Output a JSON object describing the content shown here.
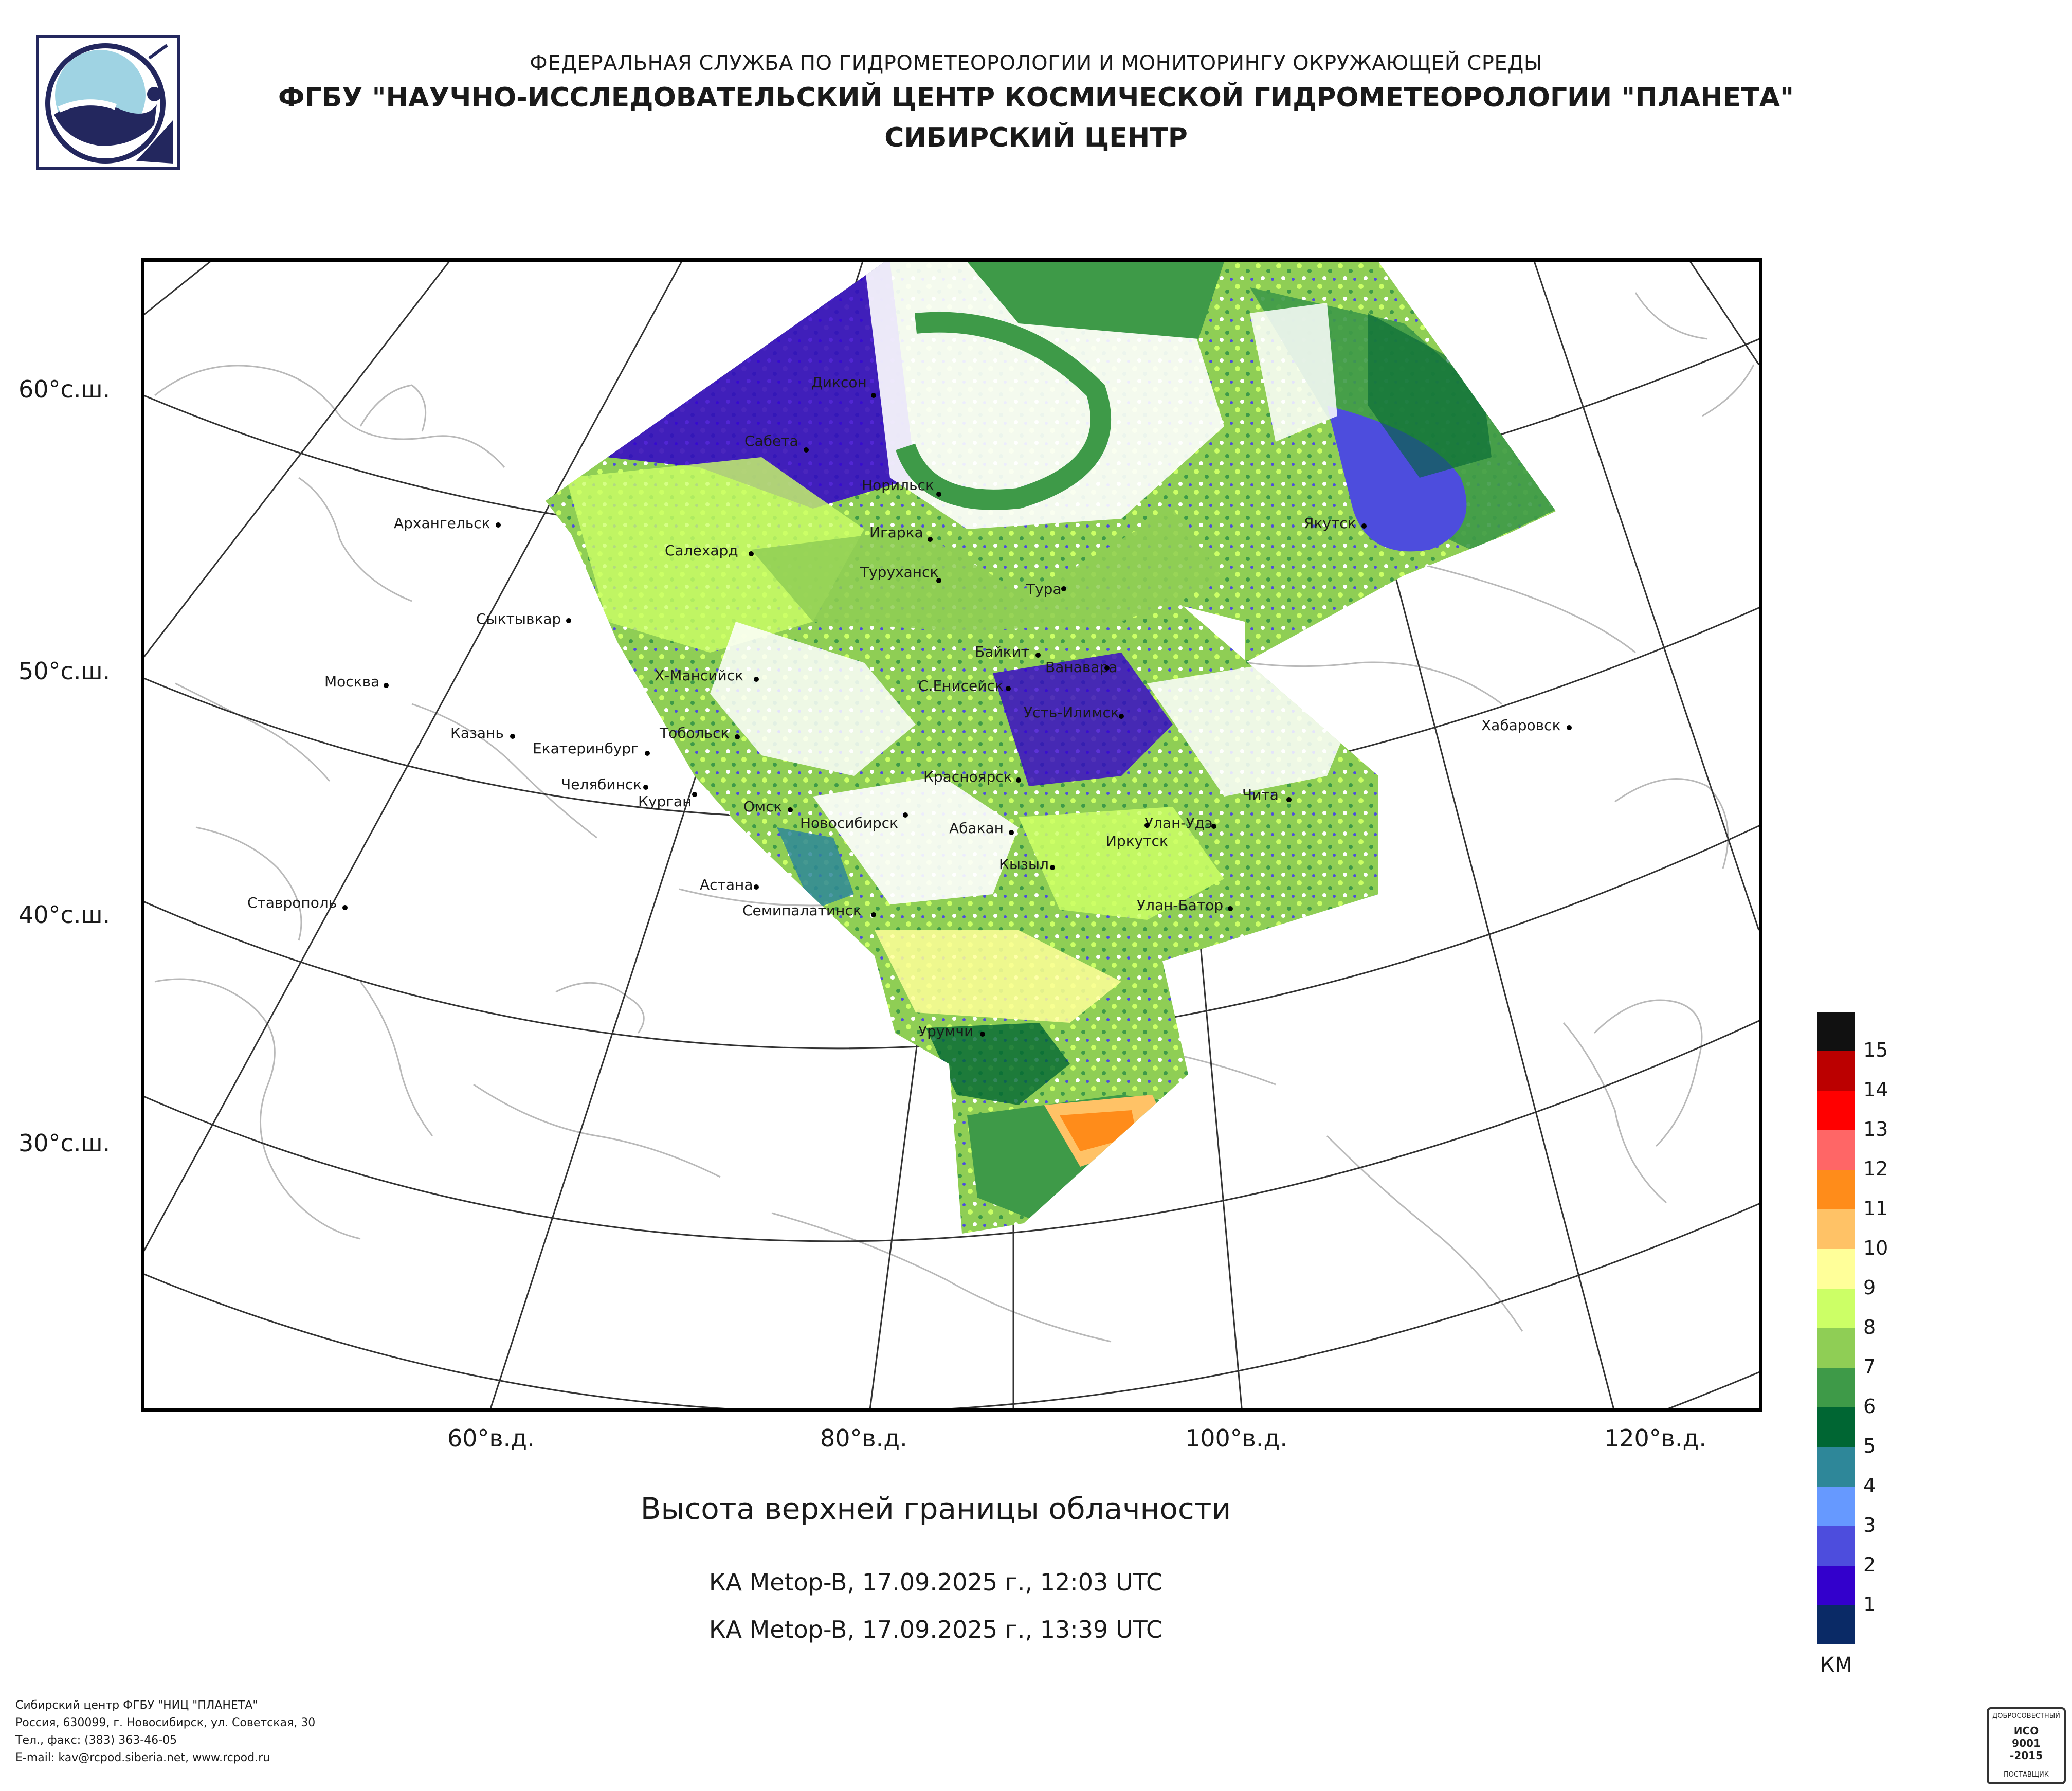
{
  "header": {
    "line1": "ФЕДЕРАЛЬНАЯ СЛУЖБА ПО ГИДРОМЕТЕОРОЛОГИИ И МОНИТОРИНГУ ОКРУЖАЮЩЕЙ СРЕДЫ",
    "line2": "ФГБУ \"НАУЧНО-ИССЛЕДОВАТЕЛЬСКИЙ ЦЕНТР КОСМИЧЕСКОЙ ГИДРОМЕТЕОРОЛОГИИ \"ПЛАНЕТА\"",
    "line3": "СИБИРСКИЙ ЦЕНТР"
  },
  "map": {
    "lat_labels": [
      "60°с.ш.",
      "50°с.ш.",
      "40°с.ш.",
      "30°с.ш."
    ],
    "lon_labels": [
      "60°в.д.",
      "80°в.д.",
      "100°в.д.",
      "120°в.д."
    ],
    "cities": [
      "Диксон",
      "Сабета",
      "Норильск",
      "Игарка",
      "Салехард",
      "Туруханск",
      "Тура",
      "Архангельск",
      "Якутск",
      "Сыктывкар",
      "Байкит",
      "Ванавара",
      "Москва",
      "Х-Мансийск",
      "С.Енисейск",
      "Усть-Илимск",
      "Казань",
      "Тобольск",
      "Екатеринбург",
      "Хабаровск",
      "Челябинск",
      "Красноярск",
      "Курган",
      "Чита",
      "Омск",
      "Новосибирск",
      "Абакан",
      "Улан-Удэ",
      "Иркутск",
      "Кызыл",
      "Астана",
      "Ставрополь",
      "Семипалатинск",
      "Улан-Батор",
      "Урумчи"
    ]
  },
  "legend": {
    "unit": "КМ",
    "levels": [
      "15",
      "14",
      "13",
      "12",
      "11",
      "10",
      "9",
      "8",
      "7",
      "6",
      "5",
      "4",
      "3",
      "2",
      "1"
    ],
    "colors": [
      "#111111",
      "#bb0000",
      "#ff0000",
      "#ff6666",
      "#ff8c1a",
      "#ffc266",
      "#ffff99",
      "#ccff66",
      "#8fce55",
      "#3e9a48",
      "#006633",
      "#2e8799",
      "#6699ff",
      "#4d4ddd",
      "#3300cc",
      "#0a2a66"
    ]
  },
  "title": "Высота верхней границы облачности",
  "passes": [
    "КА Metop-B, 17.09.2025 г., 12:03 UTC",
    "КА Metop-B, 17.09.2025 г., 13:39 UTC"
  ],
  "footer": {
    "org": "Сибирский центр ФГБУ \"НИЦ \"ПЛАНЕТА\"",
    "address": "Россия, 630099, г. Новосибирск, ул. Советская, 30",
    "phone": "Тел., факс: (383) 363-46-05",
    "email": "E-mail: kav@rcpod.siberia.net, www.rcpod.ru"
  },
  "badge": {
    "top": "ДОБРОСОВЕСТНЫЙ",
    "line1": "ИСО",
    "line2": "9001",
    "line3": "-2015",
    "bottom": "ПОСТАВЩИК"
  }
}
